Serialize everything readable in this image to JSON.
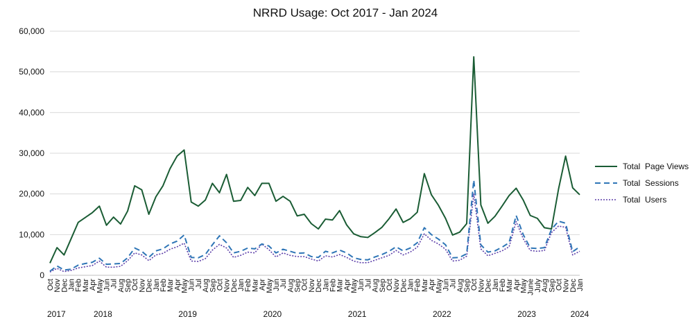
{
  "chart_data": {
    "type": "line",
    "title": "NRRD Usage: Oct 2017 - Jan 2024",
    "xlabel": "",
    "ylabel": "",
    "ylim": [
      0,
      60000
    ],
    "yticks": [
      "0",
      "10,000",
      "20,000",
      "30,000",
      "40,000",
      "50,000",
      "60,000"
    ],
    "grid": true,
    "legend_position": "right",
    "categories": [
      "Oct",
      "Nov",
      "Dec",
      "Jan",
      "Feb",
      "Mar",
      "Apr",
      "May",
      "Jun",
      "Jul",
      "Aug",
      "Sep",
      "Oct",
      "Nov",
      "Dec",
      "Jan",
      "Feb",
      "Mar",
      "Apr",
      "May",
      "Jun",
      "Jul",
      "Aug",
      "Sep",
      "Oct",
      "Nov",
      "Dec",
      "Jan",
      "Feb",
      "Mar",
      "Apr",
      "May",
      "Jun",
      "Jul",
      "Aug",
      "Sep",
      "Oct",
      "Nov",
      "Dec",
      "Jan",
      "Feb",
      "Mar",
      "Apr",
      "May",
      "Jun",
      "Jul",
      "Aug",
      "Sep",
      "Oct",
      "Nov",
      "Dec",
      "Jan",
      "Feb",
      "Mar",
      "Apr",
      "May",
      "Jun",
      "Jul",
      "Aug",
      "Sep",
      "Oct",
      "Nov",
      "Dec",
      "Jan",
      "Feb",
      "Mar",
      "Apr",
      "May",
      "June",
      "July",
      "Aug",
      "Sep",
      "Oct",
      "Nov",
      "Dec",
      "Jan"
    ],
    "years": [
      {
        "label": "2017",
        "index": 0
      },
      {
        "label": "2018",
        "index": 7.5
      },
      {
        "label": "2019",
        "index": 19.5
      },
      {
        "label": "2020",
        "index": 31.5
      },
      {
        "label": "2021",
        "index": 43.5
      },
      {
        "label": "2022",
        "index": 55.5
      },
      {
        "label": "2023",
        "index": 67.5
      },
      {
        "label": "2024",
        "index": 75
      }
    ],
    "series": [
      {
        "name": "Total  Page Views",
        "color": "#1a5c34",
        "style": "solid",
        "values": [
          3000,
          6800,
          5000,
          9000,
          13000,
          14200,
          15400,
          17000,
          12300,
          14300,
          12600,
          15800,
          22000,
          21000,
          15000,
          19300,
          22000,
          26200,
          29300,
          30800,
          18000,
          17000,
          18500,
          22600,
          20300,
          24800,
          18200,
          18400,
          21600,
          19600,
          22600,
          22600,
          18200,
          19400,
          18200,
          14600,
          15000,
          12700,
          11400,
          13800,
          13600,
          15900,
          12400,
          10200,
          9500,
          9300,
          10500,
          11800,
          13900,
          16300,
          13000,
          13900,
          15500,
          25000,
          19800,
          17200,
          14000,
          9900,
          10600,
          12700,
          53700,
          17300,
          12800,
          14500,
          17000,
          19600,
          21400,
          18500,
          14700,
          14000,
          11700,
          11400,
          21200,
          29300,
          21500,
          19800
        ]
      },
      {
        "name": "Total  Sessions",
        "color": "#2e75b6",
        "style": "dashed",
        "values": [
          1000,
          2300,
          1300,
          1500,
          2500,
          2900,
          3200,
          4200,
          2700,
          2800,
          2900,
          4300,
          6700,
          5900,
          4400,
          6000,
          6500,
          7700,
          8400,
          9900,
          4400,
          4300,
          5100,
          7500,
          9700,
          8000,
          5500,
          5900,
          6700,
          6500,
          7700,
          7200,
          5500,
          6400,
          5900,
          5400,
          5500,
          4600,
          4400,
          5900,
          5500,
          6200,
          5500,
          4300,
          3900,
          3800,
          4500,
          5100,
          5900,
          7000,
          6000,
          6700,
          8000,
          11700,
          10000,
          8900,
          7500,
          4300,
          4400,
          5300,
          23400,
          7500,
          5700,
          6000,
          6900,
          8000,
          14700,
          10000,
          6700,
          6600,
          6800,
          11300,
          13300,
          12800,
          5800,
          7000
        ]
      },
      {
        "name": "Total  Users",
        "color": "#5b3da8",
        "style": "dotted",
        "values": [
          800,
          1700,
          900,
          1200,
          1800,
          2100,
          2400,
          3500,
          2000,
          2000,
          2200,
          3600,
          5500,
          5000,
          3600,
          5000,
          5400,
          6400,
          7000,
          7900,
          3500,
          3400,
          4100,
          6200,
          7600,
          6700,
          4400,
          4900,
          5700,
          5500,
          7700,
          6300,
          4500,
          5500,
          4900,
          4600,
          4600,
          4000,
          3500,
          4800,
          4500,
          5100,
          4400,
          3500,
          3100,
          3100,
          3700,
          4300,
          4900,
          6100,
          5000,
          5700,
          6900,
          10200,
          8600,
          7700,
          6400,
          3500,
          3700,
          4700,
          20000,
          6500,
          4800,
          5400,
          6000,
          7000,
          13200,
          9000,
          6100,
          5900,
          6100,
          10500,
          12100,
          11800,
          5000,
          5900
        ]
      }
    ]
  }
}
